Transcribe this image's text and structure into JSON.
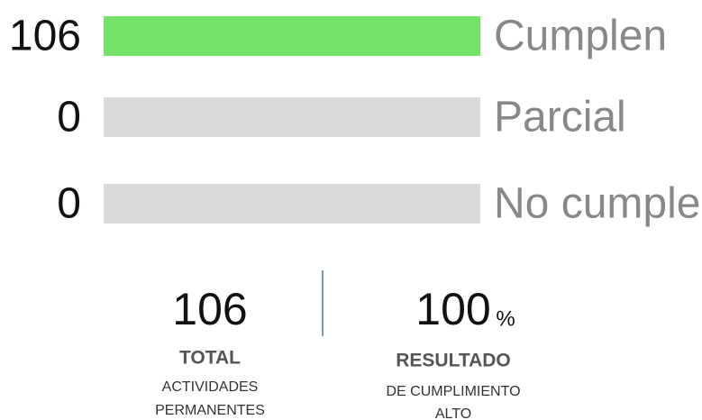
{
  "chart_data": {
    "type": "bar",
    "categories": [
      "Cumplen",
      "Parcial",
      "No cumple"
    ],
    "values": [
      106,
      0,
      0
    ],
    "color": "#74e266",
    "track_color": "#d9d9d9",
    "summary": {
      "total": {
        "value": 106,
        "title": "TOTAL",
        "caption": [
          "ACTIVIDADES",
          "PERMANENTES"
        ]
      },
      "result": {
        "value": 100,
        "unit": "%",
        "title": "RESULTADO",
        "caption": [
          "DE CUMPLIMIENTO",
          "ALTO"
        ]
      }
    }
  }
}
